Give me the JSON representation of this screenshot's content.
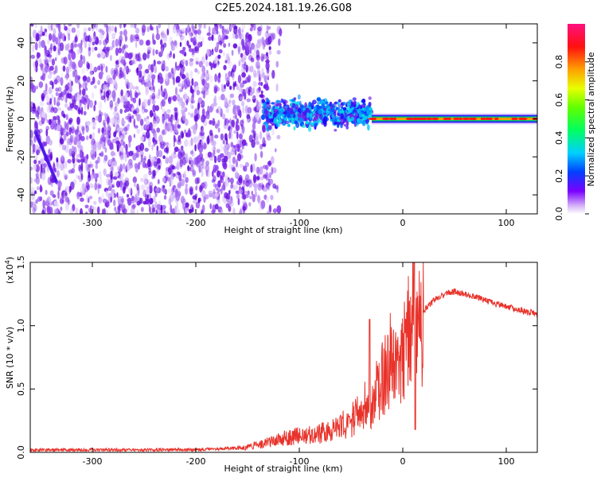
{
  "title": "C2E5.2024.181.19.26.G08",
  "colors": {
    "snr_line": "#e8322a",
    "axis": "#000000",
    "spectrogram_purple": "#7b1fe8",
    "spectrogram_light": "#d9c2f5"
  },
  "chart_data": [
    {
      "type": "heatmap",
      "id": "spectrogram",
      "xlabel": "Height of straight line (km)",
      "ylabel": "Frequency (Hz)",
      "xlim": [
        -360,
        130
      ],
      "ylim": [
        -50,
        50
      ],
      "xticks": [
        -300,
        -200,
        -100,
        0,
        100
      ],
      "xtick_labels": [
        "-300",
        "-200",
        "-100",
        "0",
        "100"
      ],
      "yticks": [
        -40,
        -20,
        0,
        20,
        40
      ],
      "ytick_labels": [
        "-40",
        "-20",
        "0",
        "20",
        "40"
      ],
      "features": [
        {
          "label": "broadband noise",
          "x_range": [
            -360,
            -130
          ],
          "y_range": [
            -50,
            50
          ],
          "level": 0.15
        },
        {
          "label": "turbulent signal",
          "x_range": [
            -135,
            -30
          ],
          "y_center": 3,
          "y_half_width": 6,
          "level": 0.35
        },
        {
          "label": "steady tone",
          "x_range": [
            -30,
            130
          ],
          "y_center": 0,
          "level": 0.95
        }
      ],
      "colorbar": {
        "label": "Normalized spectral amplitude",
        "range": [
          0,
          1
        ],
        "ticks": [
          0.0,
          0.2,
          0.4,
          0.6,
          0.8
        ],
        "tick_labels": [
          "0.0",
          "0.2",
          "0.4",
          "0.6",
          "0.8"
        ]
      }
    },
    {
      "type": "line",
      "id": "snr",
      "xlabel": "Height of straight line (km)",
      "ylabel": "SNR (10 * v/v)",
      "scale_label": "(x10",
      "scale_exp": "4",
      "xlim": [
        -360,
        130
      ],
      "ylim": [
        0,
        1.5
      ],
      "xticks": [
        -300,
        -200,
        -100,
        0,
        100
      ],
      "xtick_labels": [
        "-300",
        "-200",
        "-100",
        "0",
        "100"
      ],
      "yticks": [
        0.0,
        0.5,
        1.0,
        1.5
      ],
      "ytick_labels": [
        "0.0",
        "0.5",
        "1.0",
        "1.5"
      ],
      "series": [
        {
          "name": "SNR",
          "x": [
            -360,
            -300,
            -250,
            -200,
            -170,
            -150,
            -130,
            -110,
            -90,
            -70,
            -50,
            -40,
            -30,
            -20,
            -10,
            0,
            5,
            10,
            15,
            20,
            30,
            40,
            50,
            60,
            70,
            80,
            90,
            100,
            110,
            120,
            130
          ],
          "y": [
            0.02,
            0.02,
            0.02,
            0.02,
            0.03,
            0.04,
            0.08,
            0.12,
            0.14,
            0.16,
            0.25,
            0.35,
            0.42,
            0.6,
            0.75,
            0.85,
            0.95,
            1.0,
            1.05,
            1.12,
            1.2,
            1.25,
            1.27,
            1.25,
            1.23,
            1.2,
            1.17,
            1.15,
            1.13,
            1.11,
            1.1
          ]
        }
      ],
      "annotations": [
        {
          "label": "spike",
          "x": 11,
          "y": 1.5
        },
        {
          "label": "dip",
          "x": 12,
          "y": 0.18
        },
        {
          "label": "spike",
          "x": -32,
          "y": 1.05
        }
      ]
    }
  ]
}
